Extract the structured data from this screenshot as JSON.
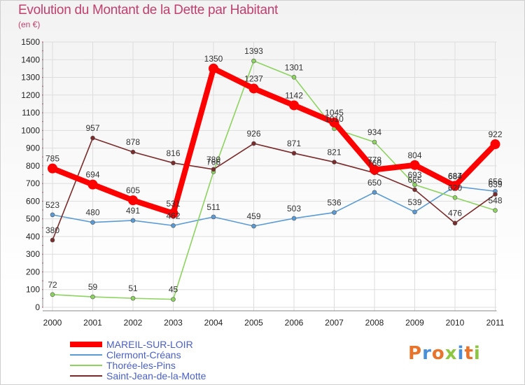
{
  "header": {
    "title": "Evolution du Montant de la Dette par Habitant",
    "subtitle": "(en €)"
  },
  "logo": {
    "text": "Proxiti",
    "colors": [
      "#e8732a",
      "#4a90d9",
      "#e8732a",
      "#8dc63f",
      "#4a90d9",
      "#e8732a",
      "#8dc63f"
    ]
  },
  "chart_data": {
    "type": "line",
    "title": "Evolution du Montant de la Dette par Habitant",
    "subtitle": "(en €)",
    "xlabel": "",
    "ylabel": "",
    "ylim": [
      0,
      1500
    ],
    "yticks": [
      0,
      100,
      200,
      300,
      400,
      500,
      600,
      700,
      800,
      900,
      1000,
      1100,
      1200,
      1300,
      1400,
      1500
    ],
    "categories": [
      "2000",
      "2001",
      "2002",
      "2003",
      "2004",
      "2005",
      "2006",
      "2007",
      "2008",
      "2009",
      "2010",
      "2011"
    ],
    "grid": true,
    "legend_position": "bottom-left",
    "series": [
      {
        "name": "MAREIL-SUR-LOIR",
        "color": "#ff0000",
        "values": [
          785,
          694,
          605,
          531,
          1350,
          1237,
          1142,
          1045,
          778,
          804,
          687,
          922
        ],
        "labels": [
          "785",
          "694",
          "605",
          "531",
          "1350",
          "1237",
          "1142",
          "1045",
          "778",
          "804",
          "687",
          "922"
        ]
      },
      {
        "name": "Clermont-Créans",
        "color": "#5b9bd5",
        "values": [
          523,
          480,
          491,
          462,
          511,
          459,
          503,
          536,
          650,
          539,
          684,
          656
        ],
        "labels": [
          "523",
          "480",
          "491",
          "462",
          "511",
          "459",
          "503",
          "536",
          "650",
          "539",
          "684",
          "656"
        ]
      },
      {
        "name": "Thorée-les-Pins",
        "color": "#8dd35f",
        "values": [
          72,
          59,
          51,
          45,
          766,
          1393,
          1301,
          1010,
          934,
          693,
          620,
          548
        ],
        "labels": [
          "72",
          "59",
          "51",
          "45",
          "766",
          "1393",
          "1301",
          "1010",
          "934",
          "693",
          "620",
          "548"
        ]
      },
      {
        "name": "Saint-Jean-de-la-Motte",
        "color": "#7b2b2b",
        "values": [
          380,
          957,
          878,
          816,
          780,
          926,
          871,
          821,
          760,
          665,
          476,
          639
        ],
        "labels": [
          "380",
          "957",
          "878",
          "816",
          "780",
          "926",
          "871",
          "821",
          "760",
          "665",
          "476",
          "639"
        ]
      }
    ]
  }
}
